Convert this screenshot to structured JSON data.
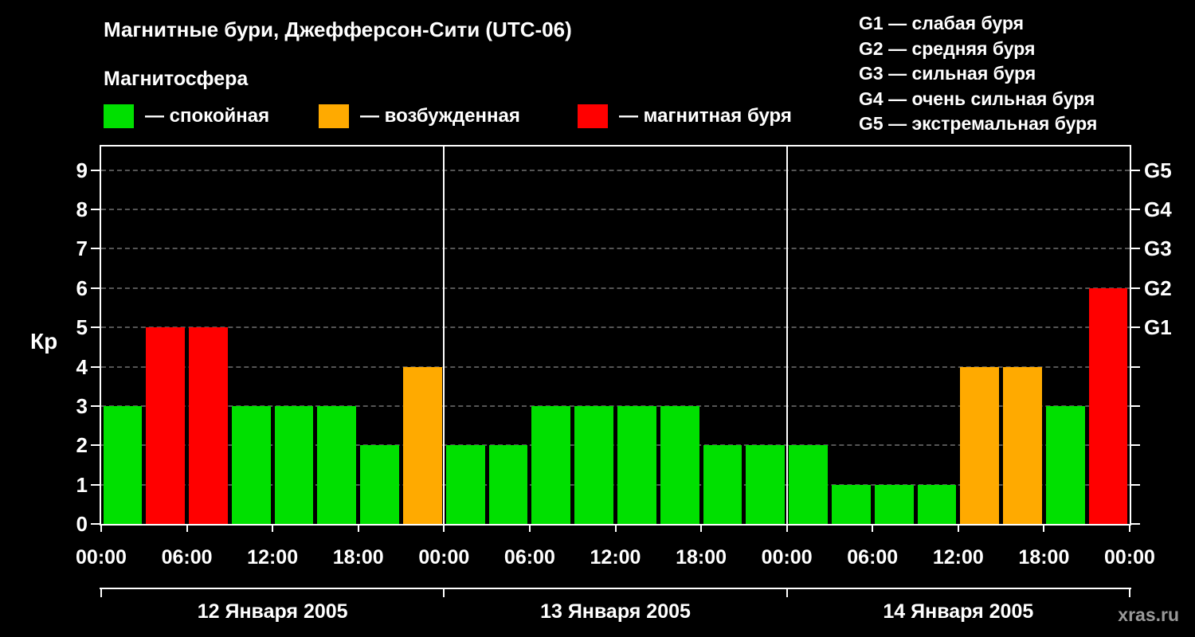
{
  "title": "Магнитные бури, Джефферсон-Сити (UTC-06)",
  "legend": {
    "heading": "Магнитосфера",
    "items": [
      {
        "name": "quiet",
        "label": "— спокойная",
        "color": "#00e000"
      },
      {
        "name": "unsettled",
        "label": "— возбужденная",
        "color": "#ffaa00"
      },
      {
        "name": "storm",
        "label": "— магнитная буря",
        "color": "#ff0000"
      }
    ]
  },
  "g_legend": [
    "G1 — слабая буря",
    "G2 — средняя буря",
    "G3 — сильная буря",
    "G4 — очень сильная буря",
    "G5 — экстремальная буря"
  ],
  "watermark": "xras.ru",
  "chart_data": {
    "type": "bar",
    "title": "Магнитные бури, Джефферсон-Сити (UTC-06)",
    "ylabel": "Кр",
    "ylim": [
      0,
      9.6
    ],
    "yticks": [
      0,
      1,
      2,
      3,
      4,
      5,
      6,
      7,
      8,
      9
    ],
    "grid": "dashed horizontal at Kp 1..9",
    "bar_interval_hours": 3,
    "x_tick_labels": [
      "00:00",
      "06:00",
      "12:00",
      "18:00",
      "00:00",
      "06:00",
      "12:00",
      "18:00",
      "00:00",
      "06:00",
      "12:00",
      "18:00",
      "00:00"
    ],
    "right_axis_labels": [
      {
        "text": "G1",
        "kp": 5
      },
      {
        "text": "G2",
        "kp": 6
      },
      {
        "text": "G3",
        "kp": 7
      },
      {
        "text": "G4",
        "kp": 8
      },
      {
        "text": "G5",
        "kp": 9
      }
    ],
    "days": [
      {
        "date": "12 Января 2005",
        "values": [
          3,
          5,
          5,
          3,
          3,
          3,
          2,
          4
        ]
      },
      {
        "date": "13 Января 2005",
        "values": [
          2,
          2,
          3,
          3,
          3,
          3,
          2,
          2
        ]
      },
      {
        "date": "14 Января 2005",
        "values": [
          2,
          1,
          1,
          1,
          4,
          4,
          3,
          6
        ]
      }
    ],
    "color_rules": {
      "quiet_max_kp": 3,
      "unsettled_max_kp": 4,
      "colors": {
        "quiet": "#00e000",
        "unsettled": "#ffaa00",
        "storm": "#ff0000"
      }
    }
  }
}
